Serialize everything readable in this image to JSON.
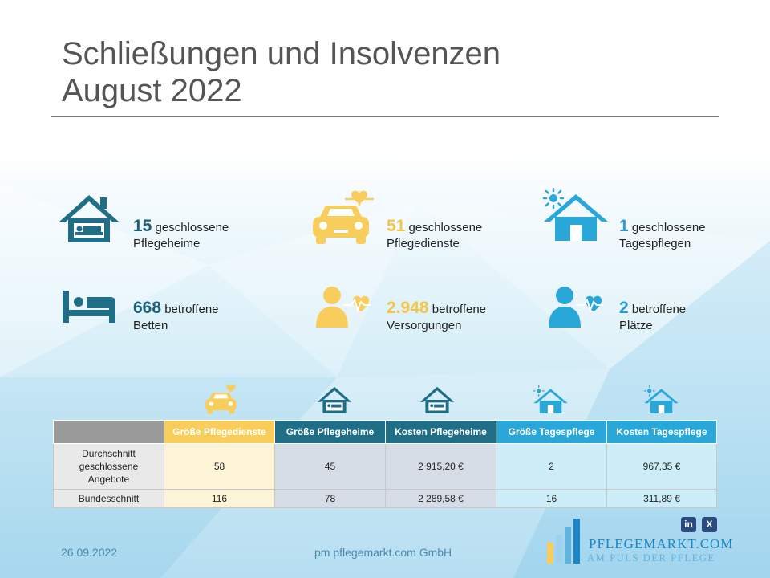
{
  "title": {
    "line1": "Schließungen und Insolvenzen",
    "line2": "August 2022"
  },
  "colors": {
    "teal": "#1f6e86",
    "yellow": "#f8cd5c",
    "blue": "#2aa7d9",
    "gray": "#9a9a9a"
  },
  "stats": [
    {
      "icon": "house-bed-icon",
      "value": "15",
      "word": "geschlossene",
      "label": "Pflegeheime"
    },
    {
      "icon": "car-heart-icon",
      "value": "51",
      "word": "geschlossene",
      "label": "Pflegedienste"
    },
    {
      "icon": "sun-house-icon",
      "value": "1",
      "word": "geschlossene",
      "label": "Tagespflegen"
    },
    {
      "icon": "bed-icon",
      "value": "668",
      "word": "betroffene",
      "label": "Betten"
    },
    {
      "icon": "person-heartbeat-icon",
      "value": "2.948",
      "word": "betroffene",
      "label": "Versorgungen"
    },
    {
      "icon": "person-heartbeat-icon",
      "value": "2",
      "word": "betroffene",
      "label": "Plätze"
    }
  ],
  "table": {
    "headers": [
      "",
      "Größe Pflegedienste",
      "Größe Pflegeheime",
      "Kosten Pflegeheime",
      "Größe Tagespflege",
      "Kosten Tagespflege"
    ],
    "rows": [
      {
        "label_lines": [
          "Durchschnitt",
          "geschlossene",
          "Angebote"
        ],
        "cells": [
          "58",
          "45",
          "2 915,20 €",
          "2",
          "967,35 €"
        ]
      },
      {
        "label_lines": [
          "Bundesschnitt"
        ],
        "cells": [
          "116",
          "78",
          "2 289,58 €",
          "16",
          "311,89 €"
        ]
      }
    ]
  },
  "footer": {
    "date": "26.09.2022",
    "company": "pm pflegemarkt.com GmbH"
  },
  "brand": {
    "name": "PFLEGEMARKT.COM",
    "tagline": "AM PULS DER PFLEGE",
    "linkedin": "in",
    "xing": "X"
  }
}
